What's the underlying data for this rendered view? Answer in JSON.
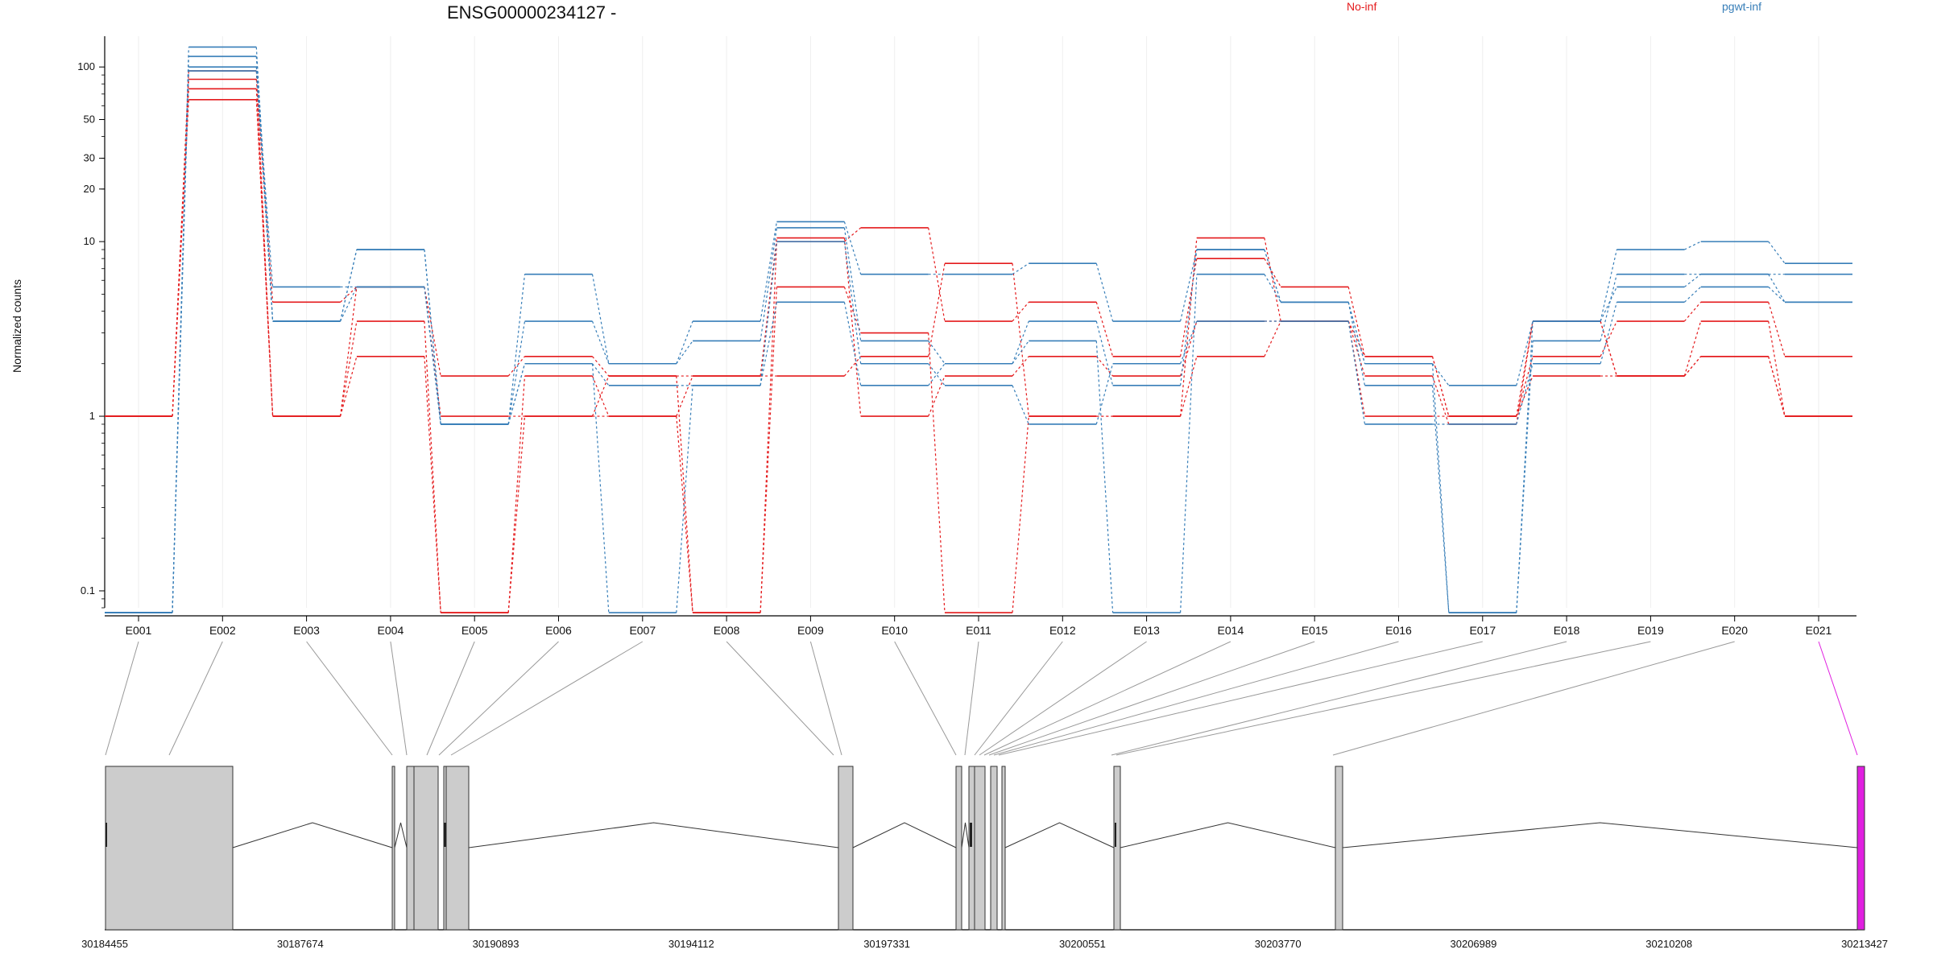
{
  "chart_data": {
    "type": "line",
    "title": "ENSG00000234127 -",
    "xlabel": "",
    "ylabel": "Normalized counts",
    "yscale": "log",
    "ylim": [
      0.08,
      150
    ],
    "yticks": [
      0.1,
      1,
      10,
      20,
      30,
      50,
      100
    ],
    "ytick_labels": [
      "0.1",
      "1",
      "10",
      "20",
      "30",
      "50",
      "100"
    ],
    "categories": [
      "E001",
      "E002",
      "E003",
      "E004",
      "E005",
      "E006",
      "E007",
      "E008",
      "E009",
      "E010",
      "E011",
      "E012",
      "E013",
      "E014",
      "E015",
      "E016",
      "E017",
      "E018",
      "E019",
      "E020",
      "E021"
    ],
    "legend": [
      {
        "label": "No-inf",
        "color": "#e41a1c"
      },
      {
        "label": "pgwt-inf",
        "color": "#377eb8"
      }
    ],
    "legend_position": "top-right",
    "series": [
      {
        "color": "#e41a1c",
        "values": [
          1,
          65,
          1,
          2.2,
          0.075,
          1,
          1,
          0.075,
          5.5,
          3,
          0.075,
          1,
          1,
          2.2,
          3.5,
          1,
          1,
          1.7,
          1.7,
          2.2,
          1
        ]
      },
      {
        "color": "#e41a1c",
        "values": [
          1,
          75,
          1,
          3.5,
          0.075,
          1.7,
          1,
          1.7,
          10.5,
          1,
          1.7,
          2.2,
          1.7,
          3.5,
          3.5,
          1.7,
          0.9,
          3.5,
          1.7,
          3.5,
          1
        ]
      },
      {
        "color": "#e41a1c",
        "values": [
          1,
          85,
          4.5,
          5.5,
          1.7,
          2.2,
          1.7,
          0.075,
          10,
          12,
          3.5,
          4.5,
          2.2,
          8,
          5.5,
          2.2,
          1,
          2.2,
          3.5,
          4.5,
          2.2
        ]
      },
      {
        "color": "#e41a1c",
        "values": [
          1,
          95,
          1,
          5.5,
          1,
          1,
          1.7,
          1.7,
          1.7,
          2.2,
          7.5,
          1,
          1,
          10.5,
          3.5,
          2.2,
          1,
          3.5,
          1.7,
          2.2,
          1
        ]
      },
      {
        "color": "#377eb8",
        "values": [
          0.075,
          130,
          3.5,
          9,
          0.9,
          6.5,
          2,
          3.5,
          13,
          6.5,
          6.5,
          7.5,
          3.5,
          9,
          4.5,
          2,
          1.5,
          3.5,
          9,
          10,
          7.5
        ]
      },
      {
        "color": "#377eb8",
        "values": [
          0.075,
          115,
          3.5,
          9,
          0.9,
          3.5,
          2,
          2.7,
          12,
          2.7,
          2,
          2.7,
          0.075,
          6.5,
          4.5,
          2,
          0.075,
          2.7,
          6.5,
          6.5,
          6.5
        ]
      },
      {
        "color": "#377eb8",
        "values": [
          0.075,
          100,
          5.5,
          5.5,
          0.9,
          2,
          1.5,
          1.5,
          10,
          2,
          1.5,
          0.9,
          2,
          3.5,
          3.5,
          0.9,
          0.9,
          2,
          4.5,
          5.5,
          4.5
        ]
      },
      {
        "color": "#377eb8",
        "values": [
          0.075,
          95,
          3.5,
          5.5,
          0.9,
          2,
          0.075,
          1.5,
          4.5,
          1.5,
          2,
          3.5,
          1.5,
          9,
          4.5,
          1.5,
          0.075,
          3.5,
          5.5,
          6.5,
          4.5
        ]
      }
    ],
    "genome_track": {
      "coordinate_ticks": [
        "30184455",
        "30187674",
        "30190893",
        "30194112",
        "30197331",
        "30200551",
        "30203770",
        "30206989",
        "30210208",
        "30213427"
      ],
      "highlight_color": "#e01fe0",
      "exon_color": "#cccccc"
    }
  }
}
